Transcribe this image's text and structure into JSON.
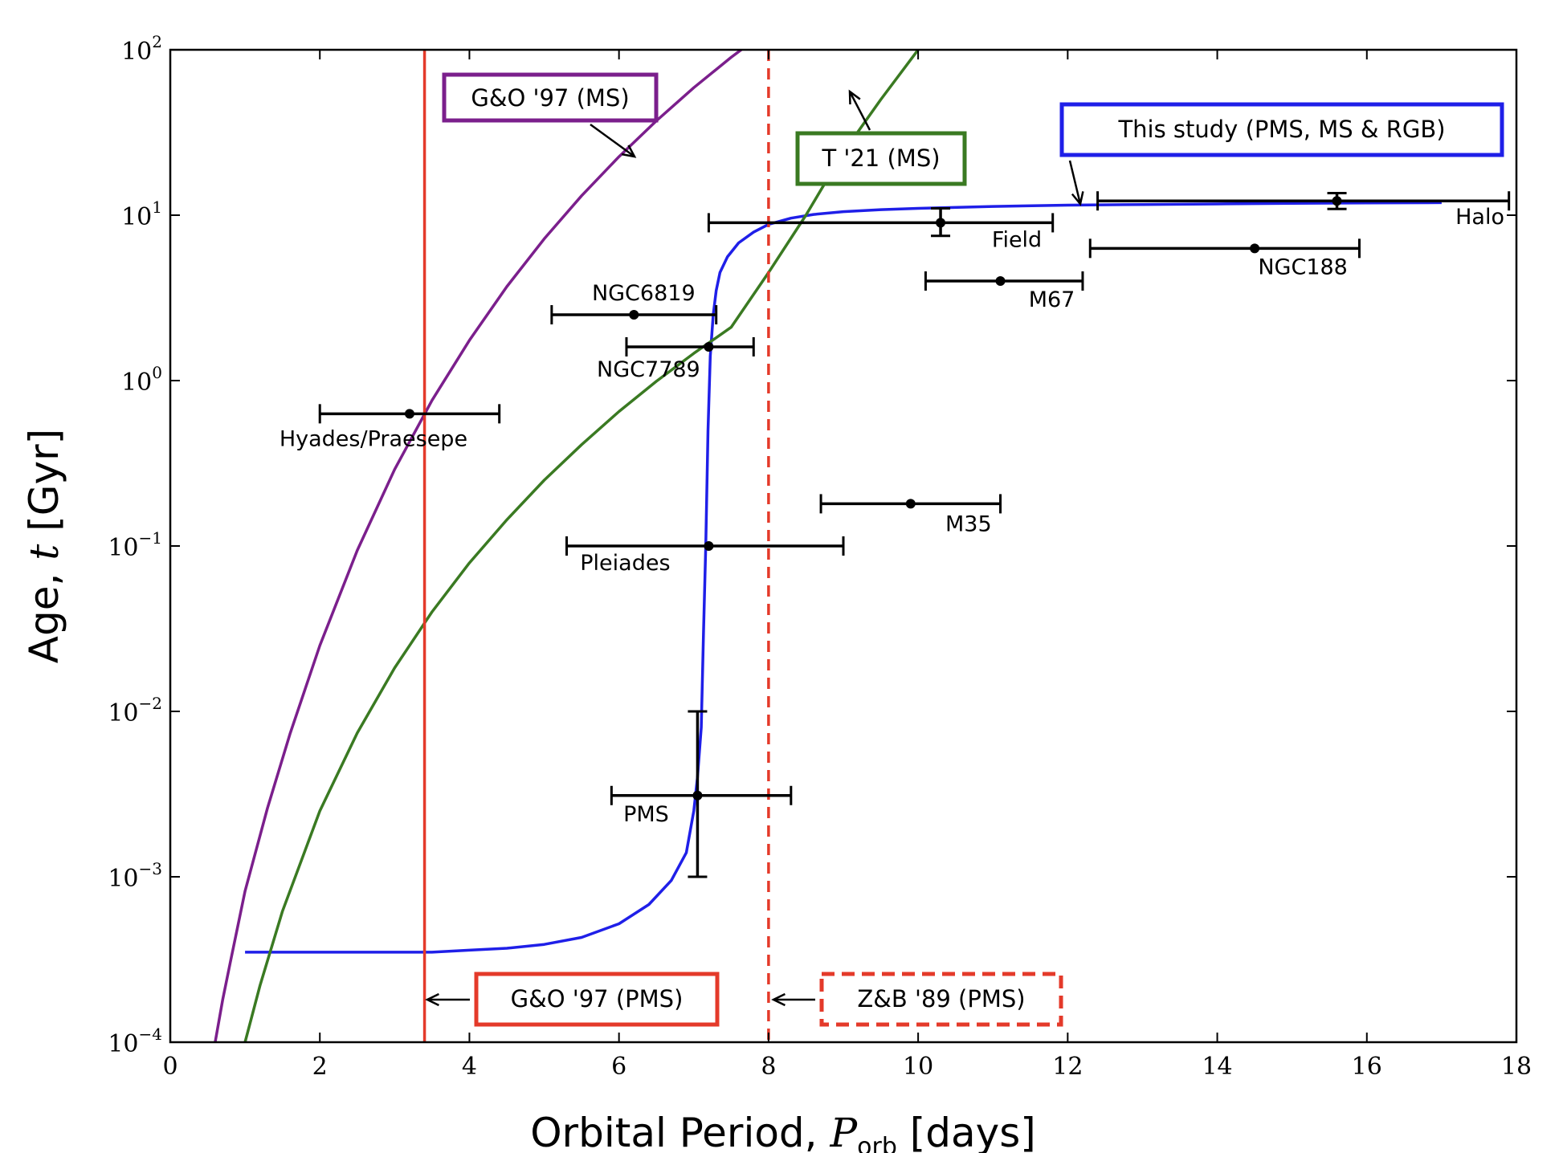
{
  "chart_data": {
    "type": "scatter",
    "title": "",
    "xlabel": "Orbital Period, ",
    "xlabel_math": "P",
    "xlabel_sub": "orb",
    "xlabel_unit": " [days]",
    "ylabel": "Age, ",
    "ylabel_math": "t",
    "ylabel_unit": " [Gyr]",
    "xlim": [
      0,
      18
    ],
    "ylim": [
      0.0001,
      100
    ],
    "yscale": "log",
    "grid": false,
    "x_ticks": [
      "0",
      "2",
      "4",
      "6",
      "8",
      "10",
      "12",
      "14",
      "16",
      "18"
    ],
    "y_ticks": [
      {
        "base": "10",
        "exp": "−4"
      },
      {
        "base": "10",
        "exp": "−3"
      },
      {
        "base": "10",
        "exp": "−2"
      },
      {
        "base": "10",
        "exp": "−1"
      },
      {
        "base": "10",
        "exp": "0"
      },
      {
        "base": "10",
        "exp": "1"
      },
      {
        "base": "10",
        "exp": "2"
      }
    ],
    "series": [
      {
        "name": "This study (PMS, MS & RGB)",
        "kind": "line",
        "color": "#1f1fe8",
        "x": [
          1.0,
          2.0,
          3.0,
          3.5,
          4.0,
          4.5,
          5.0,
          5.5,
          6.0,
          6.4,
          6.7,
          6.9,
          7.0,
          7.05,
          7.1,
          7.13,
          7.16,
          7.19,
          7.22,
          7.26,
          7.3,
          7.35,
          7.45,
          7.6,
          7.8,
          8.0,
          8.3,
          8.6,
          9.0,
          9.5,
          10.0,
          11.0,
          12.0,
          13.0,
          14.0,
          15.0,
          16.0,
          17.0
        ],
        "y": [
          0.00035,
          0.00035,
          0.00035,
          0.00035,
          0.00036,
          0.00037,
          0.00039,
          0.00043,
          0.00052,
          0.00068,
          0.00095,
          0.0014,
          0.0025,
          0.004,
          0.008,
          0.03,
          0.1,
          0.5,
          1.4,
          2.5,
          3.5,
          4.5,
          5.6,
          6.8,
          7.9,
          8.8,
          9.6,
          10.1,
          10.5,
          10.8,
          11.0,
          11.3,
          11.5,
          11.6,
          11.7,
          11.8,
          11.85,
          11.9
        ]
      },
      {
        "name": "G&O '97 (MS)",
        "kind": "line",
        "color": "#7b1f8c",
        "x": [
          0.6,
          0.7,
          0.8,
          1.0,
          1.3,
          1.6,
          2.0,
          2.5,
          3.0,
          3.5,
          4.0,
          4.5,
          5.0,
          5.5,
          6.0,
          6.5,
          7.0,
          7.5,
          8.0,
          8.5,
          8.3
        ],
        "y": [
          0.0001,
          0.00018,
          0.0003,
          0.00082,
          0.0026,
          0.0073,
          0.025,
          0.094,
          0.29,
          0.76,
          1.75,
          3.7,
          7.2,
          13.1,
          22.6,
          37.2,
          59.0,
          90.0,
          133.0,
          190.0,
          100.0
        ]
      },
      {
        "name": "T '21 (MS)",
        "kind": "line",
        "color": "#3a7a22",
        "x": [
          1.0,
          1.2,
          1.5,
          2.0,
          2.5,
          3.0,
          3.5,
          4.0,
          4.5,
          5.0,
          5.5,
          6.0,
          6.5,
          7.0,
          7.5,
          8.0,
          8.5,
          9.0,
          9.5,
          10.0
        ],
        "y": [
          0.0001,
          0.00022,
          0.00062,
          0.0025,
          0.0074,
          0.0183,
          0.04,
          0.079,
          0.144,
          0.25,
          0.41,
          0.65,
          0.99,
          1.46,
          2.1,
          4.5,
          10.0,
          24.0,
          50.0,
          100.0
        ]
      }
    ],
    "points": [
      {
        "name": "Hyades/Praesepe",
        "x": 3.2,
        "y": 0.63,
        "xerr": [
          2.0,
          4.4
        ]
      },
      {
        "name": "NGC6819",
        "x": 6.2,
        "y": 2.5,
        "xerr": [
          5.1,
          7.3
        ]
      },
      {
        "name": "NGC7789",
        "x": 7.2,
        "y": 1.6,
        "xerr": [
          6.1,
          7.8
        ]
      },
      {
        "name": "Field",
        "x": 10.3,
        "y": 9.0,
        "xerr": [
          7.2,
          11.8
        ],
        "yerr": [
          7.5,
          11.0
        ]
      },
      {
        "name": "M67",
        "x": 11.1,
        "y": 4.0,
        "xerr": [
          10.1,
          12.2
        ]
      },
      {
        "name": "NGC188",
        "x": 14.5,
        "y": 6.3,
        "xerr": [
          12.3,
          15.9
        ]
      },
      {
        "name": "Halo",
        "x": 15.6,
        "y": 12.2,
        "xerr": [
          12.4,
          17.9
        ],
        "yerr": [
          10.9,
          13.6
        ]
      },
      {
        "name": "M35",
        "x": 9.9,
        "y": 0.18,
        "xerr": [
          8.7,
          11.1
        ]
      },
      {
        "name": "Pleiades",
        "x": 7.2,
        "y": 0.1,
        "xerr": [
          5.3,
          9.0
        ]
      },
      {
        "name": "PMS",
        "x": 7.05,
        "y": 0.0031,
        "xerr": [
          5.9,
          8.3
        ],
        "yerr": [
          0.001,
          0.01
        ]
      }
    ],
    "vlines": [
      {
        "name": "G&O '97 (PMS)",
        "x": 3.4,
        "style": "solid",
        "color": "#e43a2a"
      },
      {
        "name": "Z&B '89 (PMS)",
        "x": 8.0,
        "style": "dashed",
        "color": "#e43a2a"
      }
    ],
    "annotations": [
      {
        "text": "G&O '97 (MS)",
        "color": "#7b1f8c",
        "style": "solid"
      },
      {
        "text": "T '21 (MS)",
        "color": "#3a7a22",
        "style": "solid"
      },
      {
        "text": "This study (PMS, MS & RGB)",
        "color": "#1f1fe8",
        "style": "solid"
      },
      {
        "text": "G&O '97 (PMS)",
        "color": "#e43a2a",
        "style": "solid"
      },
      {
        "text": "Z&B '89 (PMS)",
        "color": "#e43a2a",
        "style": "dashed"
      }
    ]
  }
}
